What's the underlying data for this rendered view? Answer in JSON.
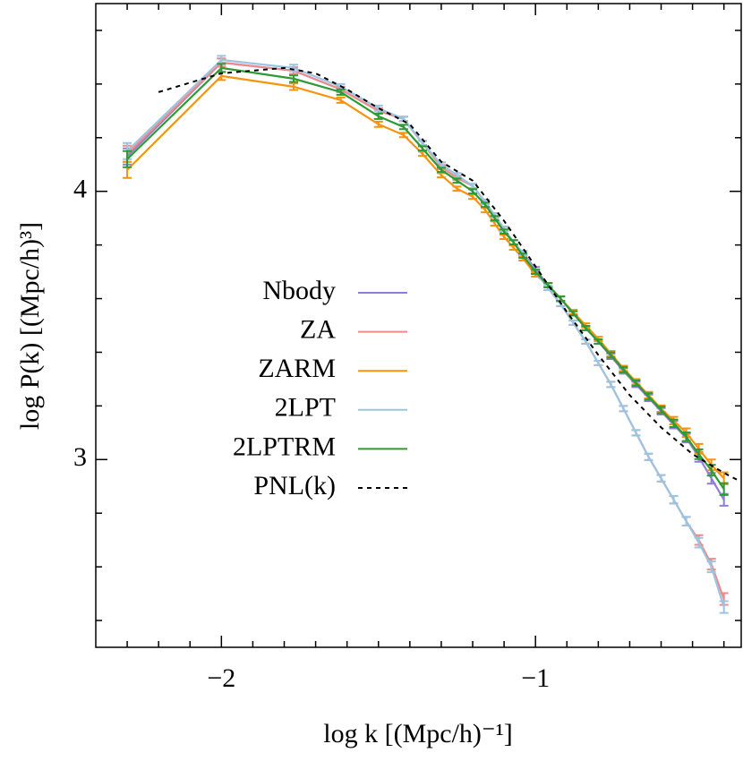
{
  "chart_data": {
    "type": "line",
    "xlabel": "log k [(Mpc/h)⁻¹]",
    "ylabel": "log P(k) [(Mpc/h)³]",
    "xlim": [
      -2.4,
      -0.345
    ],
    "ylim": [
      2.3,
      4.7
    ],
    "xticks": [
      {
        "value": -2,
        "label": "−2"
      },
      {
        "value": -1,
        "label": "−1"
      }
    ],
    "yticks": [
      3,
      4
    ],
    "xminorticks": [
      -2.3,
      -2.2,
      -2.1,
      -1.9,
      -1.8,
      -1.7,
      -1.6,
      -1.5,
      -1.4,
      -1.3,
      -1.2,
      -1.1,
      -0.9,
      -0.8,
      -0.7,
      -0.6,
      -0.5,
      -0.4
    ],
    "yminorticks": [
      2.4,
      2.6,
      2.8,
      3.2,
      3.4,
      3.6,
      3.8,
      4.2,
      4.4,
      4.6
    ],
    "legend": "center left",
    "x": [
      -2.3,
      -2.0,
      -1.77,
      -1.62,
      -1.5,
      -1.42,
      -1.36,
      -1.3,
      -1.25,
      -1.2,
      -1.16,
      -1.13,
      -1.1,
      -1.07,
      -1.04,
      -1.0,
      -0.96,
      -0.92,
      -0.88,
      -0.84,
      -0.8,
      -0.76,
      -0.72,
      -0.68,
      -0.64,
      -0.6,
      -0.56,
      -0.52,
      -0.48,
      -0.44,
      -0.4
    ],
    "series": [
      {
        "name": "Nbody",
        "color": "#8f7fd4",
        "values": [
          4.13,
          4.48,
          4.45,
          4.38,
          4.3,
          4.27,
          4.18,
          4.1,
          4.06,
          4.02,
          3.96,
          3.91,
          3.86,
          3.81,
          3.77,
          3.71,
          3.65,
          3.6,
          3.545,
          3.49,
          3.44,
          3.385,
          3.33,
          3.28,
          3.23,
          3.18,
          3.13,
          3.08,
          3.01,
          2.93,
          2.85
        ],
        "errors": [
          0.03,
          0.015,
          0.012,
          0.01,
          0.01,
          0.008,
          0.008,
          0.008,
          0.008,
          0.008,
          0.008,
          0.008,
          0.008,
          0.008,
          0.008,
          0.008,
          0.008,
          0.008,
          0.008,
          0.008,
          0.008,
          0.01,
          0.01,
          0.01,
          0.012,
          0.012,
          0.014,
          0.016,
          0.018,
          0.02,
          0.022
        ]
      },
      {
        "name": "ZA",
        "color": "#ef8a8a",
        "values": [
          4.14,
          4.48,
          4.45,
          4.38,
          4.3,
          4.27,
          4.18,
          4.09,
          4.05,
          4.02,
          3.96,
          3.91,
          3.86,
          3.81,
          3.77,
          3.7,
          3.64,
          3.58,
          3.51,
          3.44,
          3.36,
          3.28,
          3.19,
          3.1,
          3.01,
          2.93,
          2.85,
          2.77,
          2.7,
          2.61,
          2.48
        ],
        "errors": [
          0.03,
          0.015,
          0.012,
          0.01,
          0.01,
          0.008,
          0.008,
          0.008,
          0.008,
          0.008,
          0.008,
          0.008,
          0.008,
          0.008,
          0.008,
          0.008,
          0.008,
          0.008,
          0.008,
          0.008,
          0.008,
          0.01,
          0.01,
          0.01,
          0.012,
          0.012,
          0.014,
          0.016,
          0.018,
          0.02,
          0.022
        ]
      },
      {
        "name": "ZARM",
        "color": "#f7930f",
        "values": [
          4.08,
          4.43,
          4.39,
          4.34,
          4.25,
          4.21,
          4.14,
          4.06,
          4.01,
          3.98,
          3.93,
          3.88,
          3.83,
          3.79,
          3.75,
          3.69,
          3.65,
          3.6,
          3.55,
          3.5,
          3.45,
          3.395,
          3.34,
          3.29,
          3.24,
          3.19,
          3.145,
          3.1,
          3.04,
          2.98,
          2.93
        ],
        "errors": [
          0.03,
          0.015,
          0.012,
          0.01,
          0.01,
          0.008,
          0.008,
          0.008,
          0.008,
          0.008,
          0.008,
          0.008,
          0.008,
          0.008,
          0.008,
          0.008,
          0.008,
          0.008,
          0.008,
          0.008,
          0.008,
          0.01,
          0.01,
          0.01,
          0.012,
          0.012,
          0.014,
          0.016,
          0.018,
          0.02,
          0.022
        ]
      },
      {
        "name": "2LPT",
        "color": "#9cc4e0",
        "values": [
          4.15,
          4.49,
          4.46,
          4.39,
          4.31,
          4.27,
          4.18,
          4.1,
          4.06,
          4.02,
          3.96,
          3.91,
          3.86,
          3.81,
          3.77,
          3.7,
          3.64,
          3.58,
          3.51,
          3.44,
          3.36,
          3.28,
          3.19,
          3.1,
          3.01,
          2.93,
          2.85,
          2.77,
          2.69,
          2.6,
          2.45
        ],
        "errors": [
          0.03,
          0.015,
          0.012,
          0.01,
          0.01,
          0.008,
          0.008,
          0.008,
          0.008,
          0.008,
          0.008,
          0.008,
          0.008,
          0.008,
          0.008,
          0.008,
          0.008,
          0.008,
          0.008,
          0.008,
          0.008,
          0.01,
          0.01,
          0.01,
          0.012,
          0.012,
          0.014,
          0.016,
          0.018,
          0.02,
          0.022
        ]
      },
      {
        "name": "2LPTRM",
        "color": "#2f9a35",
        "values": [
          4.12,
          4.46,
          4.42,
          4.37,
          4.28,
          4.24,
          4.16,
          4.08,
          4.04,
          4.0,
          3.95,
          3.9,
          3.85,
          3.81,
          3.76,
          3.7,
          3.65,
          3.6,
          3.545,
          3.49,
          3.44,
          3.39,
          3.335,
          3.285,
          3.235,
          3.185,
          3.135,
          3.085,
          3.02,
          2.96,
          2.89
        ],
        "errors": [
          0.03,
          0.015,
          0.012,
          0.01,
          0.01,
          0.008,
          0.008,
          0.008,
          0.008,
          0.008,
          0.008,
          0.008,
          0.008,
          0.008,
          0.008,
          0.008,
          0.008,
          0.008,
          0.008,
          0.008,
          0.008,
          0.01,
          0.01,
          0.01,
          0.012,
          0.012,
          0.014,
          0.016,
          0.018,
          0.02,
          0.022
        ]
      },
      {
        "name": "PNL(k)",
        "color": "#000000",
        "dashed": true,
        "x": [
          -2.2,
          -2.0,
          -1.8,
          -1.7,
          -1.6,
          -1.5,
          -1.4,
          -1.3,
          -1.2,
          -1.1,
          -1.0,
          -0.9,
          -0.8,
          -0.7,
          -0.6,
          -0.5,
          -0.4,
          -0.35
        ],
        "values": [
          4.37,
          4.44,
          4.46,
          4.44,
          4.38,
          4.31,
          4.25,
          4.11,
          4.04,
          3.89,
          3.72,
          3.55,
          3.39,
          3.24,
          3.12,
          3.02,
          2.95,
          2.92
        ]
      }
    ]
  }
}
